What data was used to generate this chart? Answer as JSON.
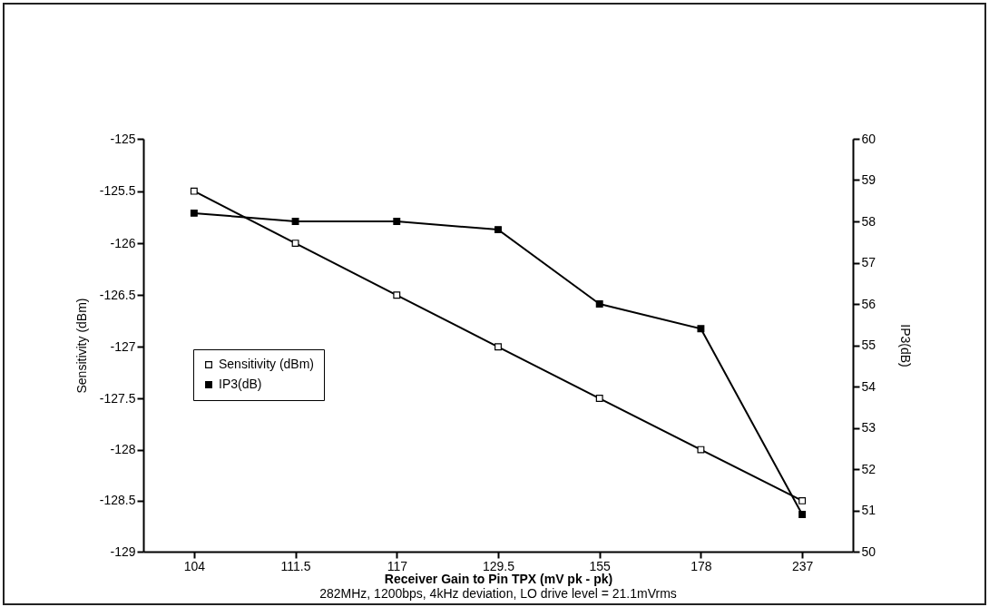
{
  "chart_data": {
    "type": "line",
    "xlabel": "Receiver Gain to Pin TPX (mV pk - pk)",
    "ylabel": "Sensitivity (dBm)",
    "y2label": "IP3(dB)",
    "categories": [
      "104",
      "111.5",
      "117",
      "129.5",
      "155",
      "178",
      "237"
    ],
    "series": [
      {
        "name": "Sensitivity (dBm)",
        "color": "#000000",
        "values": [
          -125.5,
          -126,
          -126.5,
          -127,
          -127.5,
          -128,
          -128.5
        ]
      },
      {
        "name": "IP3(dB)",
        "color": "#000000",
        "axis": "y2",
        "values": [
          58.2,
          58.0,
          58.0,
          57.8,
          56.0,
          55.4,
          50.9
        ]
      }
    ],
    "ylim": [
      -129,
      -125
    ],
    "yticks": [
      -129,
      -128.5,
      -128,
      -127.5,
      -127,
      -126.5,
      -126,
      -125.5,
      -125
    ],
    "y2lim": [
      50,
      60
    ],
    "y2ticks": [
      50,
      51,
      52,
      53,
      54,
      55,
      56,
      57,
      58,
      59,
      60
    ],
    "annotations": [
      "282MHz, 1200bps, 4kHz deviation, LO drive level = 21.1mVrms"
    ],
    "grid": false,
    "legend": "bottom left",
    "marker": "square",
    "line_style": "solid"
  }
}
